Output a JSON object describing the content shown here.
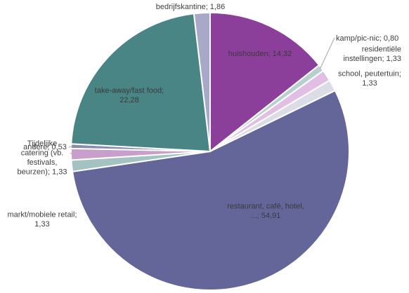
{
  "chart_data": {
    "type": "pie",
    "title": "",
    "start_angle_deg": 0,
    "direction": "clockwise",
    "slices": [
      {
        "label": "huishouden",
        "value": 14.32,
        "value_text": "14,32",
        "color": "#8b3f9b"
      },
      {
        "label": "kamp/pic-nic",
        "value": 0.8,
        "value_text": "0,80",
        "color": "#b7cfcf"
      },
      {
        "label": "residentiële instellingen",
        "value": 1.33,
        "value_text": "1,33",
        "color": "#e1bfe4"
      },
      {
        "label": "school, peutertuin",
        "value": 1.33,
        "value_text": "1,33",
        "color": "#dcdce8"
      },
      {
        "label": "restaurant, café, hotel, ...",
        "value": 54.91,
        "value_text": "54,91",
        "color": "#646699"
      },
      {
        "label": "markt/mobiele retail",
        "value": 1.33,
        "value_text": "1,33",
        "color": "#a3c2c2"
      },
      {
        "label": "Tijdelijke catering (vb. festivals, beurzen)",
        "value": 1.33,
        "value_text": "1,33",
        "color": "#c89fcc"
      },
      {
        "label": "andere",
        "value": 0.53,
        "value_text": "0,53",
        "color": "#8b8bb0"
      },
      {
        "label": "take-away/fast food",
        "value": 22.28,
        "value_text": "22,28",
        "color": "#4a8585"
      },
      {
        "label": "bedrijfskantine",
        "value": 1.86,
        "value_text": "1,86",
        "color": "#a8a8c8"
      }
    ]
  }
}
